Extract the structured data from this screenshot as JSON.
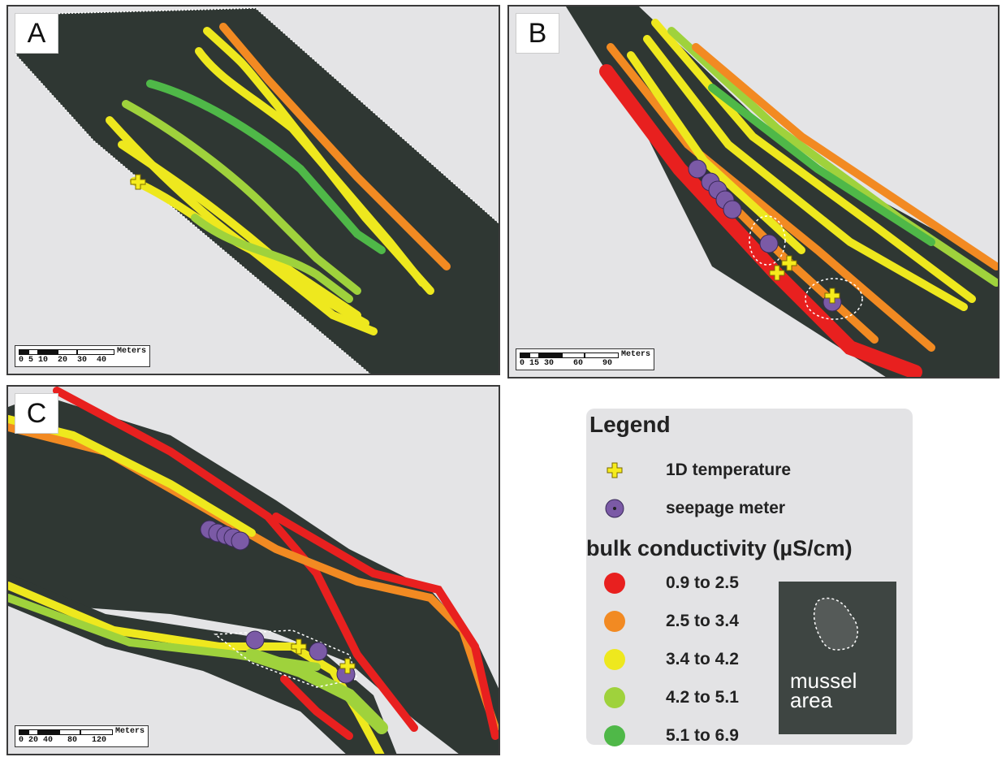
{
  "panels": {
    "a": {
      "label": "A",
      "scale_unit": "Meters",
      "scale_ticks": "0 5 10  20  30  40"
    },
    "b": {
      "label": "B",
      "scale_unit": "Meters",
      "scale_ticks": "0 15 30    60    90"
    },
    "c": {
      "label": "C",
      "scale_unit": "Meters",
      "scale_ticks": "0 20 40   80   120"
    }
  },
  "legend": {
    "title": "Legend",
    "temperature_label": "1D temperature",
    "seepage_label": "seepage meter",
    "conductivity_title": "bulk conductivity (µS/cm)",
    "classes": [
      {
        "label": "0.9 to 2.5",
        "color": "#e8201f"
      },
      {
        "label": "2.5 to 3.4",
        "color": "#f28a22"
      },
      {
        "label": "3.4 to 4.2",
        "color": "#eee81e"
      },
      {
        "label": "4.2 to 5.1",
        "color": "#9fd23c"
      },
      {
        "label": "5.1 to 6.9",
        "color": "#4fb848"
      }
    ],
    "mussel_label": "mussel area"
  },
  "colors": {
    "river": "#2f3733",
    "background": "#e4e4e6",
    "seepage_marker": "#7b5aa6",
    "temperature_marker": "#f6ec1c",
    "mussel_outline": "#ffffff"
  },
  "icons": [
    "plus-marker-icon",
    "seepage-circle-icon",
    "mussel-area-icon"
  ]
}
